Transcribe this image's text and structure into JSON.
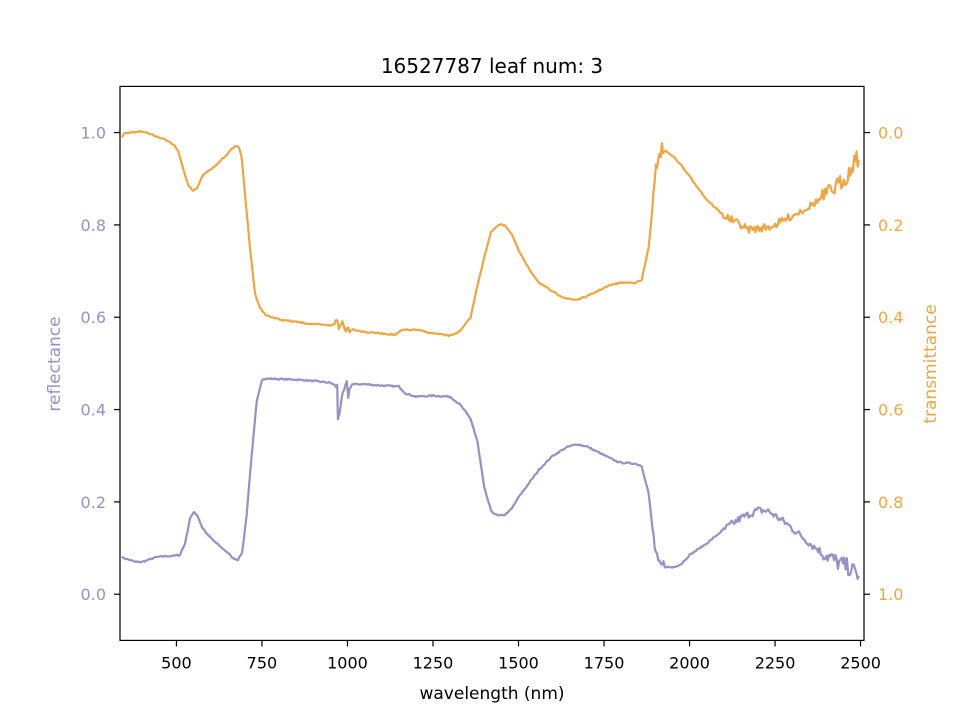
{
  "chart_data": {
    "type": "line",
    "title": "16527787 leaf num: 3",
    "xlabel": "wavelength (nm)",
    "xlim": [
      335,
      2510
    ],
    "x_ticks": [
      500,
      750,
      1000,
      1250,
      1500,
      1750,
      2000,
      2250,
      2500
    ],
    "grid": false,
    "colors": {
      "reflectance": "#9890c4",
      "transmittance": "#eea644",
      "axes": "#000000"
    },
    "y_left": {
      "label": "reflectance",
      "lim": [
        -0.1,
        1.1
      ],
      "ticks": [
        0.0,
        0.2,
        0.4,
        0.6,
        0.8,
        1.0
      ],
      "tick_labels": [
        "0.0",
        "0.2",
        "0.4",
        "0.6",
        "0.8",
        "1.0"
      ]
    },
    "y_right": {
      "label": "transmittance",
      "lim": [
        1.1,
        -0.1
      ],
      "inverted": true,
      "ticks": [
        0.0,
        0.2,
        0.4,
        0.6,
        0.8,
        1.0
      ],
      "tick_labels": [
        "0.0",
        "0.2",
        "0.4",
        "0.6",
        "0.8",
        "1.0"
      ]
    },
    "series": [
      {
        "axis": "left",
        "color": "#9890c4",
        "points": [
          [
            340,
            0.08
          ],
          [
            360,
            0.075
          ],
          [
            380,
            0.07
          ],
          [
            400,
            0.07
          ],
          [
            420,
            0.075
          ],
          [
            440,
            0.08
          ],
          [
            460,
            0.082
          ],
          [
            490,
            0.083
          ],
          [
            510,
            0.085
          ],
          [
            525,
            0.11
          ],
          [
            540,
            0.165
          ],
          [
            552,
            0.178
          ],
          [
            562,
            0.17
          ],
          [
            575,
            0.145
          ],
          [
            590,
            0.13
          ],
          [
            610,
            0.115
          ],
          [
            630,
            0.102
          ],
          [
            650,
            0.09
          ],
          [
            665,
            0.078
          ],
          [
            680,
            0.075
          ],
          [
            692,
            0.09
          ],
          [
            705,
            0.17
          ],
          [
            720,
            0.3
          ],
          [
            735,
            0.42
          ],
          [
            750,
            0.465
          ],
          [
            770,
            0.467
          ],
          [
            800,
            0.466
          ],
          [
            850,
            0.465
          ],
          [
            900,
            0.462
          ],
          [
            950,
            0.458
          ],
          [
            970,
            0.45
          ],
          [
            972,
            0.38
          ],
          [
            980,
            0.41
          ],
          [
            990,
            0.44
          ],
          [
            998,
            0.455
          ],
          [
            1002,
            0.43
          ],
          [
            1010,
            0.455
          ],
          [
            1050,
            0.455
          ],
          [
            1100,
            0.452
          ],
          [
            1150,
            0.45
          ],
          [
            1170,
            0.435
          ],
          [
            1200,
            0.428
          ],
          [
            1250,
            0.43
          ],
          [
            1300,
            0.428
          ],
          [
            1330,
            0.41
          ],
          [
            1360,
            0.38
          ],
          [
            1380,
            0.33
          ],
          [
            1400,
            0.23
          ],
          [
            1420,
            0.18
          ],
          [
            1440,
            0.17
          ],
          [
            1460,
            0.172
          ],
          [
            1480,
            0.185
          ],
          [
            1500,
            0.21
          ],
          [
            1530,
            0.24
          ],
          [
            1560,
            0.27
          ],
          [
            1600,
            0.3
          ],
          [
            1640,
            0.318
          ],
          [
            1670,
            0.325
          ],
          [
            1700,
            0.32
          ],
          [
            1740,
            0.305
          ],
          [
            1780,
            0.29
          ],
          [
            1800,
            0.285
          ],
          [
            1840,
            0.283
          ],
          [
            1860,
            0.278
          ],
          [
            1880,
            0.22
          ],
          [
            1895,
            0.12
          ],
          [
            1905,
            0.07
          ],
          [
            1912,
            0.055
          ],
          [
            1920,
            0.06
          ],
          [
            1950,
            0.058
          ],
          [
            1975,
            0.065
          ],
          [
            2000,
            0.085
          ],
          [
            2050,
            0.11
          ],
          [
            2100,
            0.14
          ],
          [
            2150,
            0.165
          ],
          [
            2200,
            0.182
          ],
          [
            2230,
            0.18
          ],
          [
            2250,
            0.17
          ],
          [
            2280,
            0.155
          ],
          [
            2320,
            0.13
          ],
          [
            2360,
            0.105
          ],
          [
            2400,
            0.085
          ],
          [
            2430,
            0.07
          ],
          [
            2460,
            0.06
          ],
          [
            2480,
            0.05
          ],
          [
            2495,
            0.04
          ]
        ]
      },
      {
        "axis": "right",
        "color": "#eea644",
        "points": [
          [
            340,
            0.01
          ],
          [
            350,
            0.0
          ],
          [
            370,
            0.0
          ],
          [
            400,
            -0.003
          ],
          [
            430,
            0.005
          ],
          [
            460,
            0.013
          ],
          [
            490,
            0.025
          ],
          [
            505,
            0.04
          ],
          [
            520,
            0.08
          ],
          [
            535,
            0.115
          ],
          [
            548,
            0.125
          ],
          [
            560,
            0.12
          ],
          [
            575,
            0.095
          ],
          [
            590,
            0.085
          ],
          [
            610,
            0.075
          ],
          [
            630,
            0.06
          ],
          [
            650,
            0.045
          ],
          [
            670,
            0.03
          ],
          [
            682,
            0.03
          ],
          [
            690,
            0.05
          ],
          [
            700,
            0.13
          ],
          [
            715,
            0.25
          ],
          [
            730,
            0.35
          ],
          [
            745,
            0.38
          ],
          [
            760,
            0.395
          ],
          [
            800,
            0.405
          ],
          [
            850,
            0.41
          ],
          [
            900,
            0.415
          ],
          [
            950,
            0.418
          ],
          [
            970,
            0.41
          ],
          [
            975,
            0.425
          ],
          [
            985,
            0.41
          ],
          [
            995,
            0.425
          ],
          [
            1010,
            0.425
          ],
          [
            1050,
            0.432
          ],
          [
            1100,
            0.435
          ],
          [
            1140,
            0.438
          ],
          [
            1160,
            0.428
          ],
          [
            1200,
            0.427
          ],
          [
            1250,
            0.435
          ],
          [
            1300,
            0.44
          ],
          [
            1330,
            0.43
          ],
          [
            1360,
            0.4
          ],
          [
            1380,
            0.33
          ],
          [
            1400,
            0.27
          ],
          [
            1420,
            0.215
          ],
          [
            1440,
            0.2
          ],
          [
            1460,
            0.2
          ],
          [
            1480,
            0.22
          ],
          [
            1500,
            0.255
          ],
          [
            1530,
            0.295
          ],
          [
            1560,
            0.325
          ],
          [
            1600,
            0.345
          ],
          [
            1640,
            0.36
          ],
          [
            1670,
            0.362
          ],
          [
            1700,
            0.355
          ],
          [
            1740,
            0.34
          ],
          [
            1770,
            0.33
          ],
          [
            1800,
            0.325
          ],
          [
            1840,
            0.325
          ],
          [
            1860,
            0.32
          ],
          [
            1880,
            0.25
          ],
          [
            1895,
            0.14
          ],
          [
            1905,
            0.06
          ],
          [
            1912,
            0.04
          ],
          [
            1930,
            0.04
          ],
          [
            1950,
            0.05
          ],
          [
            1975,
            0.07
          ],
          [
            2000,
            0.095
          ],
          [
            2050,
            0.145
          ],
          [
            2100,
            0.18
          ],
          [
            2150,
            0.2
          ],
          [
            2170,
            0.21
          ],
          [
            2200,
            0.208
          ],
          [
            2230,
            0.205
          ],
          [
            2250,
            0.2
          ],
          [
            2300,
            0.18
          ],
          [
            2350,
            0.16
          ],
          [
            2400,
            0.135
          ],
          [
            2440,
            0.11
          ],
          [
            2470,
            0.085
          ],
          [
            2485,
            0.05
          ],
          [
            2495,
            0.06
          ]
        ]
      }
    ]
  }
}
